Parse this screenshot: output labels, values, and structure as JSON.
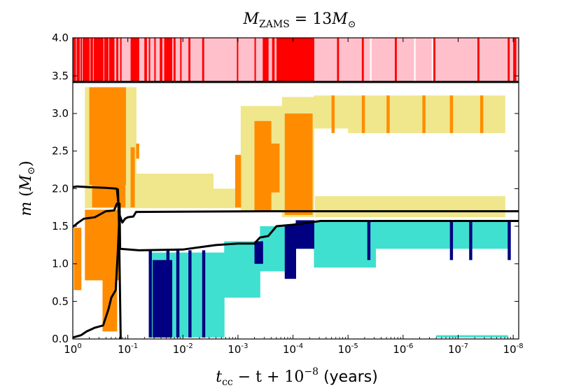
{
  "chart_data": {
    "type": "heatmap",
    "title": {
      "base": "M",
      "sub": "ZAMS",
      "eq": " = 13",
      "tail_base": "M",
      "tail_sub": "⊙"
    },
    "xlabel": {
      "math": "t",
      "sub": "cc",
      "mid": " − t + 10",
      "exp": "−8",
      "plain": " (years)"
    },
    "ylabel": {
      "math": "m",
      "paren_open": " (",
      "base": "M",
      "sub": "⊙",
      "paren_close": ")"
    },
    "x_scale": "log-reversed",
    "xlim": [
      1,
      1e-08
    ],
    "ylim_main": [
      0,
      3.42
    ],
    "ylim_strip": [
      3.42,
      4.0
    ],
    "x_ticks": [
      {
        "exp": 0,
        "base": "10",
        "sup": "0"
      },
      {
        "exp": -1,
        "base": "10",
        "sup": "-1"
      },
      {
        "exp": -2,
        "base": "10",
        "sup": "-2"
      },
      {
        "exp": -3,
        "base": "10",
        "sup": "-3"
      },
      {
        "exp": -4,
        "base": "10",
        "sup": "-4"
      },
      {
        "exp": -5,
        "base": "10",
        "sup": "-5"
      },
      {
        "exp": -6,
        "base": "10",
        "sup": "-6"
      },
      {
        "exp": -7,
        "base": "10",
        "sup": "-7"
      },
      {
        "exp": -8,
        "base": "10",
        "sup": "-8"
      }
    ],
    "y_ticks": [
      {
        "value": 0.0,
        "label": "0.0"
      },
      {
        "value": 0.5,
        "label": "0.5"
      },
      {
        "value": 1.0,
        "label": "1.0"
      },
      {
        "value": 1.5,
        "label": "1.5"
      },
      {
        "value": 2.0,
        "label": "2.0"
      },
      {
        "value": 2.5,
        "label": "2.5"
      },
      {
        "value": 3.0,
        "label": "3.0"
      },
      {
        "value": 3.5,
        "label": "3.5"
      },
      {
        "value": 4.0,
        "label": "4.0"
      }
    ],
    "colors": {
      "strip_red": "#ff0000",
      "strip_pink": "#ffc0cb",
      "burning_orange": "#ff8c00",
      "burning_khaki": "#f0e68c",
      "conv_turquoise": "#40e0d0",
      "conv_navy": "#000080",
      "line": "#000000"
    },
    "strip_red_spans": [
      [
        0.0,
        -0.05
      ],
      [
        -0.07,
        -0.12
      ],
      [
        -0.14,
        -0.16
      ],
      [
        -0.18,
        -0.3
      ],
      [
        -0.32,
        -0.36
      ],
      [
        -0.38,
        -0.55
      ],
      [
        -0.57,
        -0.64
      ],
      [
        -0.66,
        -0.75
      ],
      [
        -0.79,
        -0.82
      ],
      [
        -0.86,
        -0.88
      ],
      [
        -1.05,
        -1.2
      ],
      [
        -1.3,
        -1.34
      ],
      [
        -1.38,
        -1.4
      ],
      [
        -1.48,
        -1.5
      ],
      [
        -1.58,
        -1.62
      ],
      [
        -1.66,
        -1.8
      ],
      [
        -1.83,
        -1.86
      ],
      [
        -1.95,
        -1.97
      ],
      [
        -2.1,
        -2.13
      ],
      [
        -2.35,
        -2.38
      ],
      [
        -2.98,
        -3.0
      ],
      [
        -3.3,
        -3.32
      ],
      [
        -3.45,
        -3.55
      ],
      [
        -3.62,
        -3.66
      ],
      [
        -3.7,
        -4.38
      ],
      [
        -4.8,
        -4.83
      ],
      [
        -5.25,
        -5.28
      ],
      [
        -5.85,
        -5.88
      ],
      [
        -6.55,
        -6.58
      ],
      [
        -7.35,
        -7.38
      ],
      [
        -7.9,
        -7.93
      ],
      [
        -8.0,
        -8.05
      ]
    ],
    "strip_white_spans": [
      [
        -5.4,
        -5.42
      ],
      [
        -6.2,
        -6.22
      ],
      [
        -6.52,
        -6.54
      ]
    ],
    "orange_regions": [
      {
        "x": [
          -0.3,
          -0.96
        ],
        "y": [
          2.05,
          3.35
        ]
      },
      {
        "x": [
          -0.35,
          -0.95
        ],
        "y": [
          1.75,
          2.05
        ]
      },
      {
        "x": [
          -0.22,
          -0.85
        ],
        "y": [
          0.78,
          1.72
        ]
      },
      {
        "x": [
          -0.02,
          -0.15
        ],
        "y": [
          0.65,
          1.48
        ]
      },
      {
        "x": [
          -0.54,
          -0.8
        ],
        "y": [
          0.1,
          0.85
        ]
      },
      {
        "x": [
          -1.05,
          -1.12
        ],
        "y": [
          1.75,
          2.55
        ]
      },
      {
        "x": [
          -1.15,
          -1.2
        ],
        "y": [
          2.4,
          2.6
        ]
      },
      {
        "x": [
          -2.95,
          -3.05
        ],
        "y": [
          1.75,
          2.45
        ]
      },
      {
        "x": [
          -3.3,
          -3.6
        ],
        "y": [
          1.7,
          2.9
        ]
      },
      {
        "x": [
          -3.85,
          -4.35
        ],
        "y": [
          1.65,
          3.0
        ]
      },
      {
        "x": [
          -3.6,
          -3.75
        ],
        "y": [
          1.95,
          2.6
        ]
      }
    ],
    "khaki_regions": [
      {
        "x": [
          -0.22,
          -1.15
        ],
        "y": [
          1.74,
          3.35
        ]
      },
      {
        "x": [
          -1.15,
          -2.55
        ],
        "y": [
          1.74,
          2.2
        ]
      },
      {
        "x": [
          -2.55,
          -3.05
        ],
        "y": [
          1.74,
          2.0
        ]
      },
      {
        "x": [
          -3.05,
          -3.8
        ],
        "y": [
          1.7,
          3.1
        ]
      },
      {
        "x": [
          -3.8,
          -4.38
        ],
        "y": [
          1.62,
          3.22
        ]
      },
      {
        "x": [
          -4.38,
          -5.0
        ],
        "y": [
          2.8,
          3.24
        ]
      },
      {
        "x": [
          -5.0,
          -7.85
        ],
        "y": [
          2.74,
          3.24
        ]
      },
      {
        "x": [
          -4.4,
          -7.85
        ],
        "y": [
          1.62,
          1.9
        ]
      }
    ],
    "orange_stripes": [
      -4.7,
      -5.25,
      -5.7,
      -6.35,
      -6.85,
      -7.4
    ],
    "navy_regions": [
      {
        "x": [
          -1.45,
          -1.8
        ],
        "y": [
          0.02,
          1.05
        ]
      },
      {
        "x": [
          -3.85,
          -4.05
        ],
        "y": [
          0.8,
          1.52
        ]
      },
      {
        "x": [
          -4.05,
          -4.38
        ],
        "y": [
          1.2,
          1.58
        ]
      },
      {
        "x": [
          -3.3,
          -3.45
        ],
        "y": [
          1.0,
          1.3
        ]
      }
    ],
    "navy_stripes": [
      -1.38,
      -1.7,
      -1.88,
      -2.1,
      -2.35,
      -5.35,
      -6.85,
      -7.2,
      -7.9
    ],
    "turquoise_regions": [
      {
        "x": [
          -1.4,
          -2.75
        ],
        "y": [
          0.02,
          1.15
        ]
      },
      {
        "x": [
          -2.75,
          -3.4
        ],
        "y": [
          0.55,
          1.3
        ]
      },
      {
        "x": [
          -3.4,
          -3.85
        ],
        "y": [
          0.9,
          1.5
        ]
      },
      {
        "x": [
          -4.38,
          -5.5
        ],
        "y": [
          0.95,
          1.57
        ]
      },
      {
        "x": [
          -5.5,
          -7.9
        ],
        "y": [
          1.2,
          1.57
        ]
      },
      {
        "x": [
          -6.6,
          -7.9
        ],
        "y": [
          0.02,
          0.05
        ]
      }
    ],
    "series": [
      {
        "name": "upper-mass-line",
        "points": [
          [
            0.0,
            3.42
          ],
          [
            -8.1,
            3.42
          ]
        ]
      },
      {
        "name": "line-1.7",
        "points": [
          [
            0.0,
            2.02
          ],
          [
            -0.08,
            2.03
          ],
          [
            -0.3,
            2.02
          ],
          [
            -0.6,
            2.01
          ],
          [
            -0.8,
            2.0
          ],
          [
            -0.85,
            1.65
          ],
          [
            -0.9,
            1.55
          ],
          [
            -0.95,
            1.6
          ],
          [
            -1.0,
            1.62
          ],
          [
            -1.1,
            1.63
          ],
          [
            -1.15,
            1.69
          ],
          [
            -3.5,
            1.7
          ],
          [
            -6.0,
            1.7
          ],
          [
            -8.1,
            1.7
          ]
        ]
      },
      {
        "name": "line-1.57",
        "points": [
          [
            0.0,
            1.49
          ],
          [
            -0.1,
            1.55
          ],
          [
            -0.2,
            1.6
          ],
          [
            -0.4,
            1.62
          ],
          [
            -0.6,
            1.7
          ],
          [
            -0.75,
            1.71
          ],
          [
            -0.8,
            1.8
          ],
          [
            -0.85,
            1.8
          ],
          [
            -0.86,
            1.2
          ],
          [
            -1.2,
            1.18
          ],
          [
            -2.0,
            1.19
          ],
          [
            -2.1,
            1.2
          ],
          [
            -2.4,
            1.23
          ],
          [
            -2.6,
            1.25
          ],
          [
            -3.0,
            1.27
          ],
          [
            -3.3,
            1.27
          ],
          [
            -3.4,
            1.35
          ],
          [
            -3.55,
            1.37
          ],
          [
            -3.7,
            1.5
          ],
          [
            -4.0,
            1.52
          ],
          [
            -4.3,
            1.55
          ],
          [
            -4.5,
            1.57
          ],
          [
            -8.1,
            1.57
          ]
        ]
      },
      {
        "name": "line-low-a",
        "points": [
          [
            0.0,
            0.02
          ],
          [
            -0.15,
            0.05
          ],
          [
            -0.25,
            0.1
          ],
          [
            -0.4,
            0.15
          ],
          [
            -0.55,
            0.18
          ],
          [
            -0.65,
            0.4
          ],
          [
            -0.7,
            0.55
          ],
          [
            -0.78,
            0.65
          ],
          [
            -0.82,
            1.2
          ],
          [
            -0.85,
            1.7
          ]
        ]
      },
      {
        "name": "line-low-b",
        "points": [
          [
            -0.87,
            0.0
          ],
          [
            -0.86,
            0.5
          ],
          [
            -0.85,
            1.0
          ],
          [
            -0.84,
            1.5
          ],
          [
            -0.82,
            2.0
          ]
        ]
      }
    ]
  }
}
